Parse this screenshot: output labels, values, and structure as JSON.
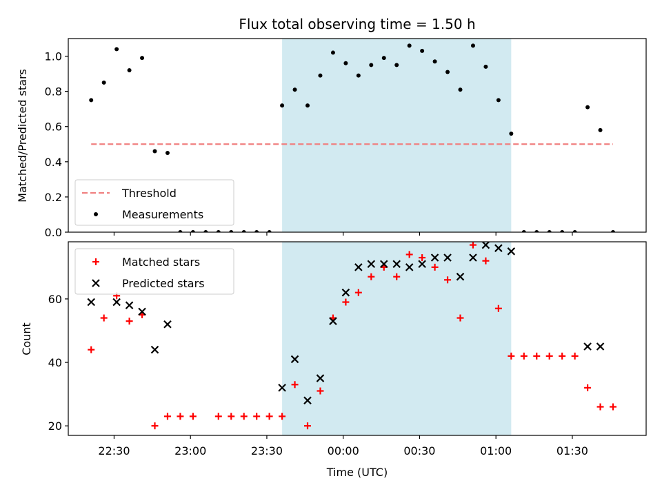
{
  "chart_data": {
    "title": "Flux total observing time = 1.50 h",
    "xlabel": "Time (UTC)",
    "x_tick_labels": [
      {
        "time": "22:30",
        "label": "22:30"
      },
      {
        "time": "23:00",
        "label": "23:00"
      },
      {
        "time": "23:30",
        "label": "23:30"
      },
      {
        "time": "00:00",
        "label": "00:00"
      },
      {
        "time": "00:30",
        "label": "00:30"
      },
      {
        "time": "01:00",
        "label": "01:00"
      },
      {
        "time": "01:30",
        "label": "01:30"
      }
    ],
    "xlim": [
      "22:12",
      "01:59"
    ],
    "shaded_interval": {
      "start": "23:36",
      "end": "01:06",
      "color": "#add8e6"
    },
    "panels": [
      {
        "type": "scatter",
        "ylabel": "Matched/Predicted stars",
        "ylim": [
          0,
          1.1
        ],
        "yticks": [
          0.0,
          0.2,
          0.4,
          0.6,
          0.8,
          1.0
        ],
        "y_tick_labels": [
          "0.0",
          "0.2",
          "0.4",
          "0.6",
          "0.8",
          "1.0"
        ],
        "legend": {
          "position": "lower-left",
          "entries": [
            {
              "label": "Threshold",
              "marker": "dashed-line",
              "color": "#f08080"
            },
            {
              "label": "Measurements",
              "marker": "dot",
              "color": "#000000"
            }
          ]
        },
        "series": [
          {
            "name": "Threshold",
            "style": "dashed-line",
            "color": "#f08080",
            "x": [
              "22:21",
              "01:46"
            ],
            "y": [
              0.5,
              0.5
            ]
          },
          {
            "name": "Measurements",
            "style": "dot",
            "color": "#000000",
            "x": [
              "22:21",
              "22:26",
              "22:31",
              "22:36",
              "22:41",
              "22:46",
              "22:51",
              "22:56",
              "23:01",
              "23:06",
              "23:11",
              "23:16",
              "23:21",
              "23:26",
              "23:31",
              "23:36",
              "23:41",
              "23:46",
              "23:51",
              "23:56",
              "00:01",
              "00:06",
              "00:11",
              "00:16",
              "00:21",
              "00:26",
              "00:31",
              "00:36",
              "00:41",
              "00:46",
              "00:51",
              "00:56",
              "01:01",
              "01:06",
              "01:11",
              "01:16",
              "01:21",
              "01:26",
              "01:31",
              "01:36",
              "01:41",
              "01:46"
            ],
            "y": [
              0.75,
              0.85,
              1.04,
              0.92,
              0.99,
              0.46,
              0.45,
              0.0,
              0.0,
              0.0,
              0.0,
              0.0,
              0.0,
              0.0,
              0.0,
              0.72,
              0.81,
              0.72,
              0.89,
              1.02,
              0.96,
              0.89,
              0.95,
              0.99,
              0.95,
              1.06,
              1.03,
              0.97,
              0.91,
              0.81,
              1.06,
              0.94,
              0.75,
              0.56,
              0.0,
              0.0,
              0.0,
              0.0,
              0.0,
              0.71,
              0.58,
              0.0
            ]
          }
        ]
      },
      {
        "type": "scatter",
        "ylabel": "Count",
        "ylim": [
          17,
          78
        ],
        "yticks": [
          20,
          40,
          60
        ],
        "y_tick_labels": [
          "20",
          "40",
          "60"
        ],
        "legend": {
          "position": "upper-left",
          "entries": [
            {
              "label": "Matched stars",
              "marker": "plus",
              "color": "#ff0000"
            },
            {
              "label": "Predicted stars",
              "marker": "x",
              "color": "#000000"
            }
          ]
        },
        "series": [
          {
            "name": "Matched stars",
            "style": "plus",
            "color": "#ff0000",
            "x": [
              "22:21",
              "22:26",
              "22:31",
              "22:36",
              "22:41",
              "22:46",
              "22:51",
              "22:56",
              "23:01",
              "23:11",
              "23:16",
              "23:21",
              "23:26",
              "23:31",
              "23:36",
              "23:41",
              "23:46",
              "23:51",
              "23:56",
              "00:01",
              "00:06",
              "00:11",
              "00:16",
              "00:21",
              "00:26",
              "00:31",
              "00:36",
              "00:41",
              "00:46",
              "00:51",
              "00:56",
              "01:01",
              "01:06",
              "01:11",
              "01:16",
              "01:21",
              "01:26",
              "01:31",
              "01:36",
              "01:41",
              "01:46"
            ],
            "y": [
              44,
              54,
              61,
              53,
              55,
              20,
              23,
              23,
              23,
              23,
              23,
              23,
              23,
              23,
              23,
              33,
              20,
              31,
              54,
              59,
              62,
              67,
              70,
              67,
              74,
              73,
              70,
              66,
              54,
              77,
              72,
              57,
              42,
              42,
              42,
              42,
              42,
              42,
              32,
              26,
              26
            ]
          },
          {
            "name": "Predicted stars",
            "style": "x",
            "color": "#000000",
            "x": [
              "22:21",
              "22:31",
              "22:36",
              "22:41",
              "22:46",
              "22:51",
              "23:36",
              "23:41",
              "23:46",
              "23:51",
              "23:56",
              "00:01",
              "00:06",
              "00:11",
              "00:16",
              "00:21",
              "00:26",
              "00:31",
              "00:36",
              "00:41",
              "00:46",
              "00:51",
              "00:56",
              "01:01",
              "01:06",
              "01:36",
              "01:41"
            ],
            "y": [
              59,
              59,
              58,
              56,
              44,
              52,
              32,
              41,
              28,
              35,
              53,
              62,
              70,
              71,
              71,
              71,
              70,
              71,
              73,
              73,
              67,
              73,
              77,
              76,
              75,
              45,
              45
            ]
          }
        ]
      }
    ]
  }
}
